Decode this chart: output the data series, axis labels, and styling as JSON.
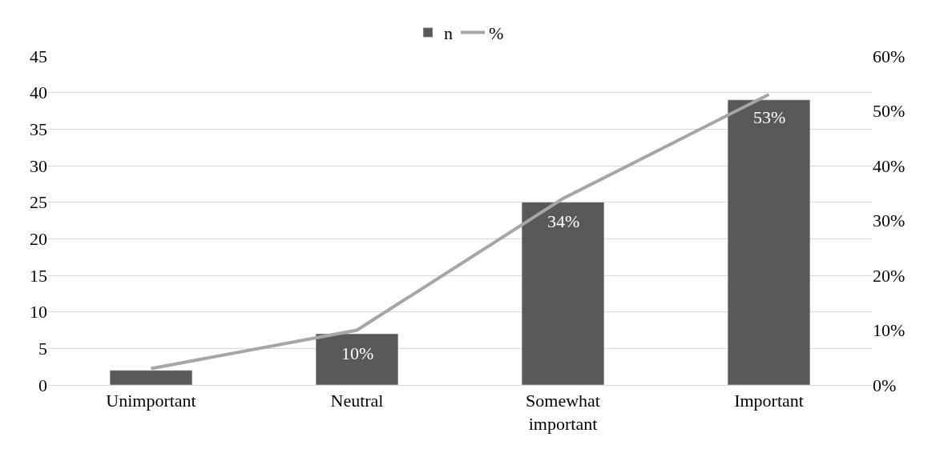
{
  "chart_data": {
    "type": "bar",
    "categories": [
      "Unimportant",
      "Neutral",
      "Somewhat important",
      "Important"
    ],
    "series": [
      {
        "name": "n",
        "color": "#595959",
        "values": [
          2,
          7,
          25,
          39
        ]
      },
      {
        "name": "%",
        "type": "line",
        "axis": "y2",
        "color": "#a6a6a6",
        "values": [
          3,
          10,
          34,
          53
        ],
        "value_labels": [
          null,
          "10%",
          "34%",
          "53%"
        ]
      }
    ],
    "ylim": [
      0,
      45
    ],
    "yticks": [
      0,
      5,
      10,
      15,
      20,
      25,
      30,
      35,
      40,
      45
    ],
    "y2lim": [
      0,
      60
    ],
    "y2ticks": [
      {
        "value": 0,
        "label": "0%"
      },
      {
        "value": 10,
        "label": "10%"
      },
      {
        "value": 20,
        "label": "20%"
      },
      {
        "value": 30,
        "label": "30%"
      },
      {
        "value": 40,
        "label": "40%"
      },
      {
        "value": 50,
        "label": "50%"
      },
      {
        "value": 60,
        "label": "60%"
      }
    ],
    "grid": "y",
    "legend": "top",
    "marker": "none",
    "line_style": "solid"
  }
}
